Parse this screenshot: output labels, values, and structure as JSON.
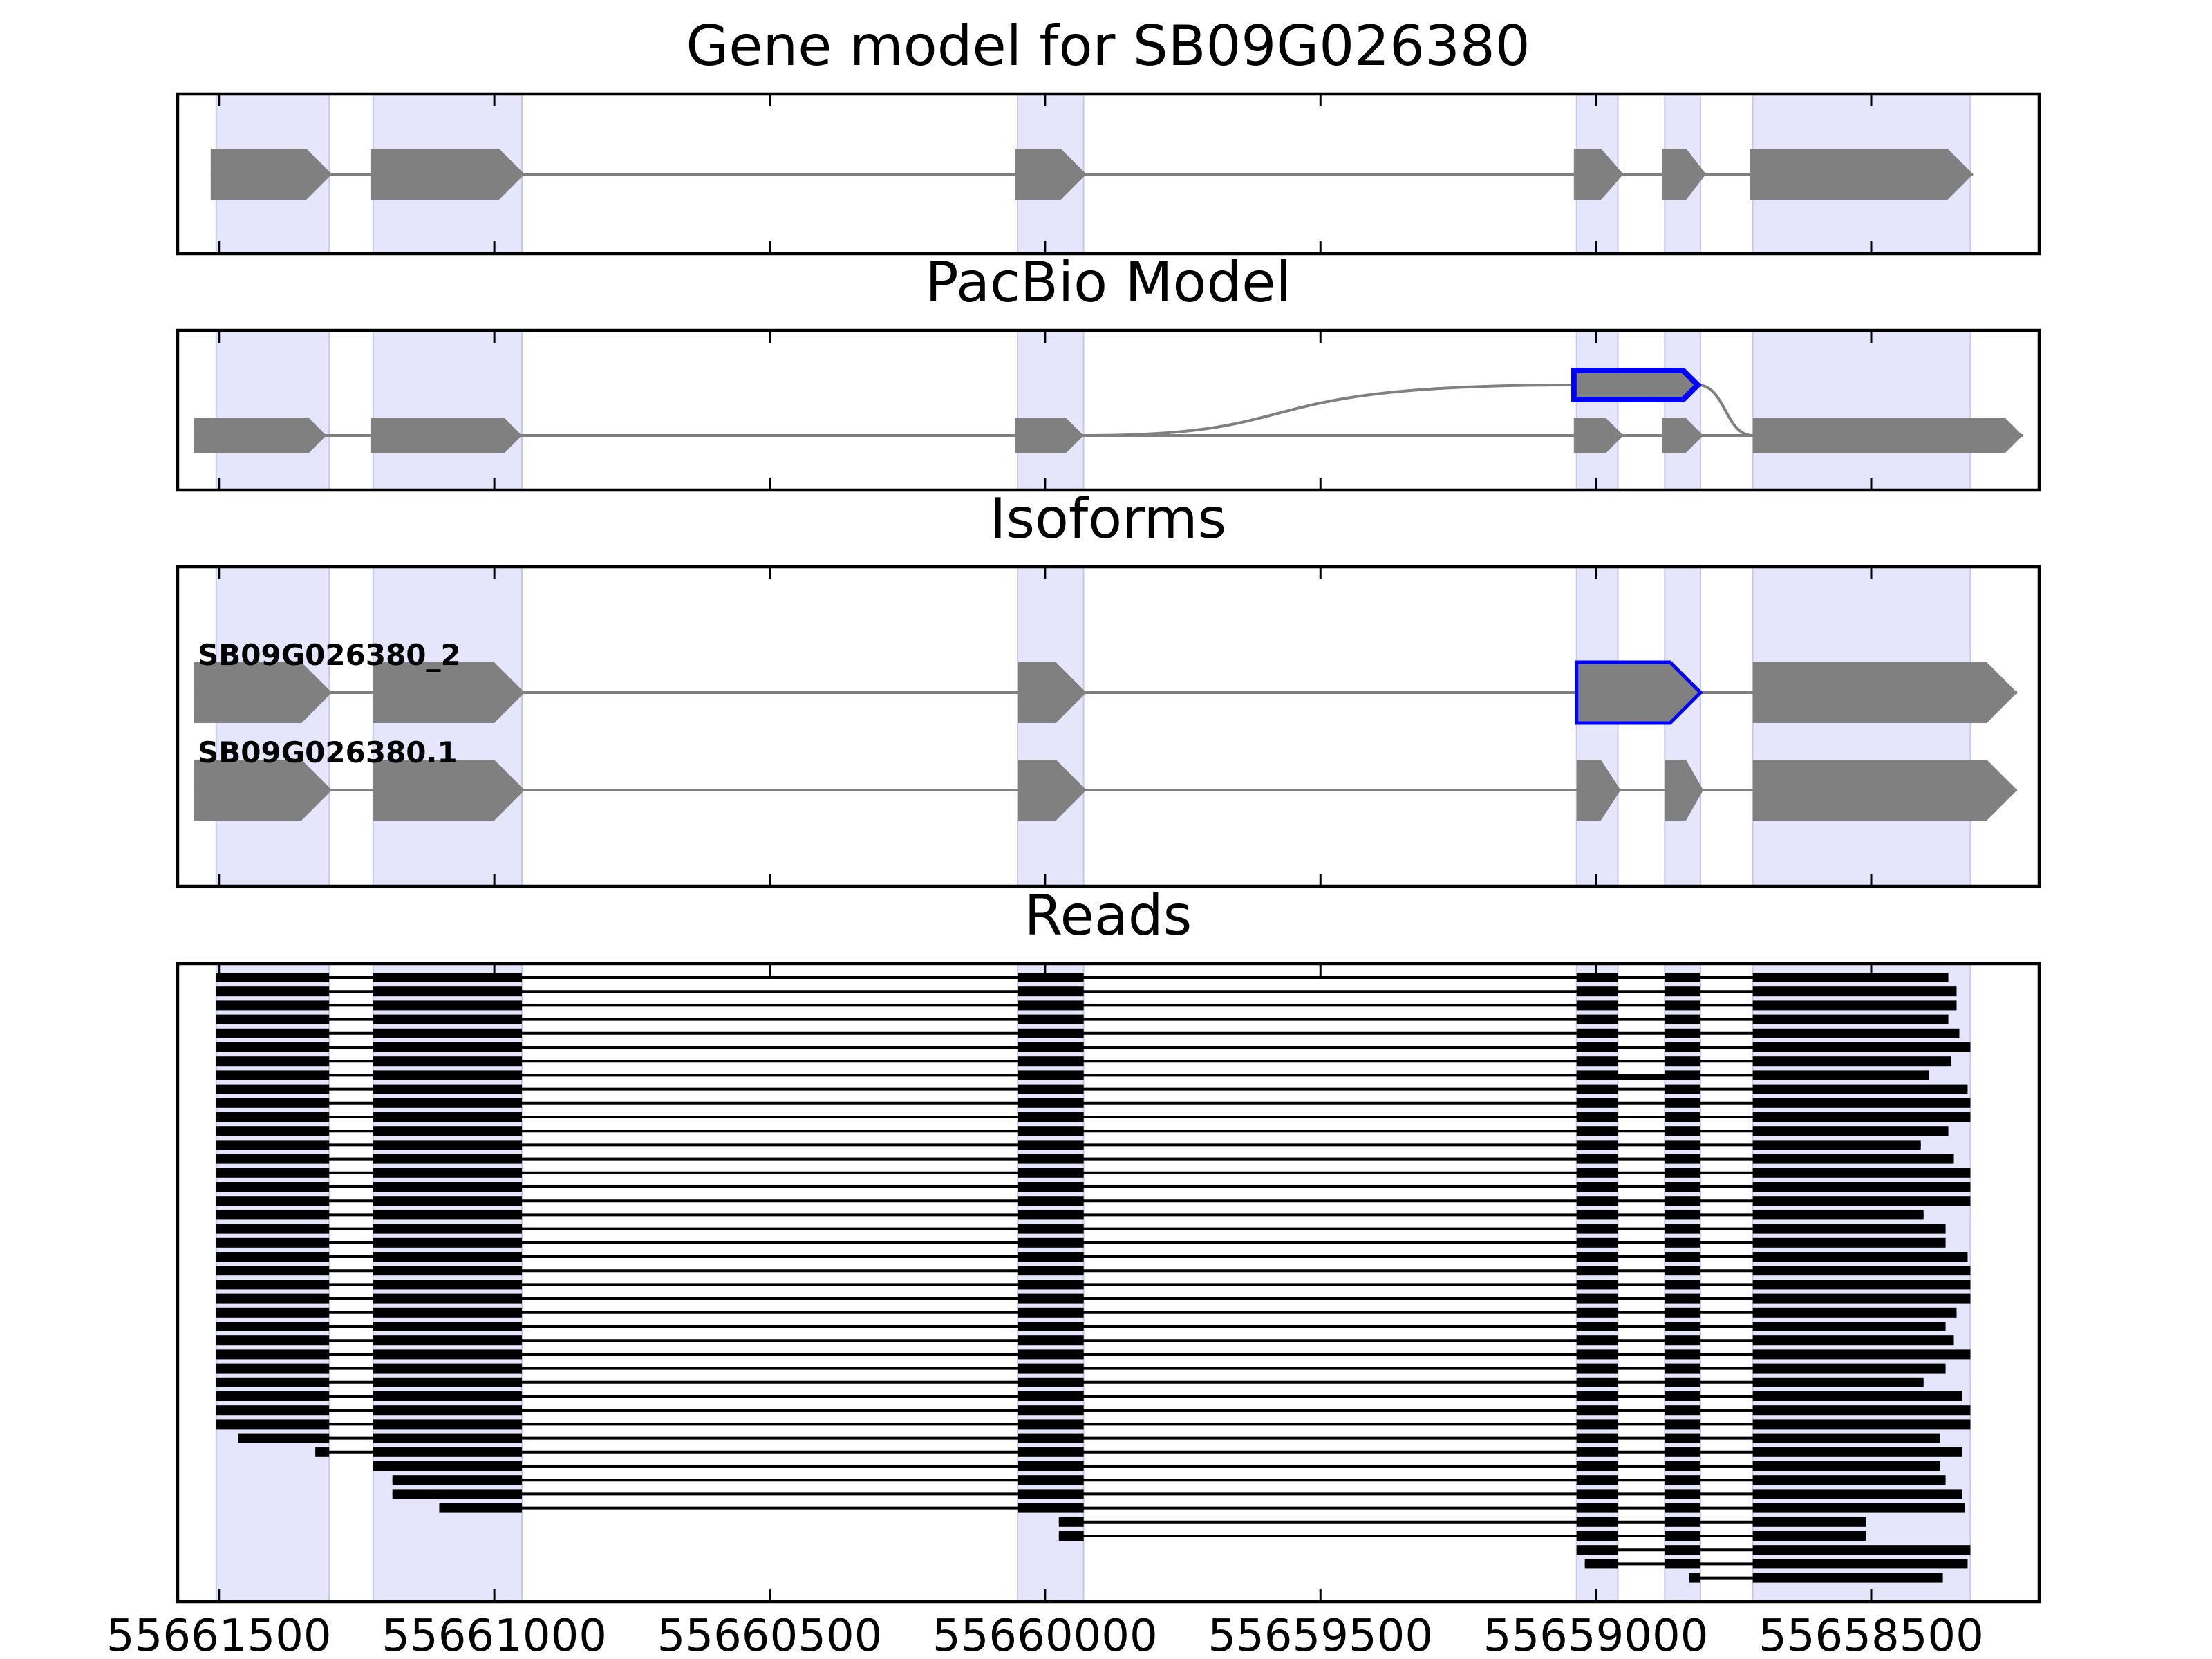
{
  "figure": {
    "panels": [
      {
        "id": "gene-model",
        "title": "Gene model for SB09G026380"
      },
      {
        "id": "pacbio-model",
        "title": "PacBio Model"
      },
      {
        "id": "isoforms",
        "title": "Isoforms"
      },
      {
        "id": "reads",
        "title": "Reads"
      }
    ]
  },
  "colors": {
    "exon_fill": "#808080",
    "intron_line": "#808080",
    "highlight_band": "#e5e5fc",
    "novel_outline": "#0000ff",
    "read": "#000000",
    "frame": "#000000"
  },
  "chart_data": {
    "type": "gene-model-diagram",
    "axis": {
      "orientation": "reversed",
      "ticks": [
        55661500,
        55661000,
        55660500,
        55660000,
        55659500,
        55659000,
        55658500
      ],
      "tick_labels": [
        "55661500",
        "55661000",
        "55660500",
        "55660000",
        "55659500",
        "55659000",
        "55658500"
      ],
      "xlim": [
        55661575,
        55658195
      ]
    },
    "highlighted_exon_regions": [
      [
        55661505,
        55661300
      ],
      [
        55661220,
        55660950
      ],
      [
        55660050,
        55659930
      ],
      [
        55659035,
        55658960
      ],
      [
        55658875,
        55658810
      ],
      [
        55658715,
        55658320
      ]
    ],
    "gene_model": {
      "exons": [
        [
          55661515,
          55661295
        ],
        [
          55661225,
          55660945
        ],
        [
          55660055,
          55659925
        ],
        [
          55659040,
          55658950
        ],
        [
          55658880,
          55658800
        ],
        [
          55658720,
          55658315
        ]
      ]
    },
    "pacbio_model": {
      "exons": [
        [
          55661545,
          55661305
        ],
        [
          55661225,
          55660950
        ],
        [
          55660055,
          55659930
        ],
        [
          55659040,
          55658950
        ],
        [
          55658880,
          55658805
        ],
        [
          55658715,
          55658225
        ]
      ],
      "novel_exon": [
        55659040,
        55658815
      ]
    },
    "isoforms": [
      {
        "name": "SB09G026380_2",
        "exons": [
          [
            55661545,
            55661295
          ],
          [
            55661220,
            55660945
          ],
          [
            55660050,
            55659925
          ],
          [
            55659035,
            55658810
          ],
          [
            55658715,
            55658235
          ]
        ],
        "novel_exon_index": 3
      },
      {
        "name": "SB09G026380.1",
        "exons": [
          [
            55661545,
            55661295
          ],
          [
            55661220,
            55660945
          ],
          [
            55660050,
            55659925
          ],
          [
            55659035,
            55658955
          ],
          [
            55658875,
            55658805
          ],
          [
            55658715,
            55658235
          ]
        ]
      }
    ],
    "reads": [
      {
        "start": 55661548,
        "end": 55658360
      },
      {
        "start": 55661545,
        "end": 55658345
      },
      {
        "start": 55661538,
        "end": 55658345
      },
      {
        "start": 55661535,
        "end": 55658360
      },
      {
        "start": 55661533,
        "end": 55658340
      },
      {
        "start": 55661533,
        "end": 55658265
      },
      {
        "start": 55661532,
        "end": 55658355
      },
      {
        "start": 55661532,
        "end": 55658395,
        "novel": true
      },
      {
        "start": 55661531,
        "end": 55658325
      },
      {
        "start": 55661530,
        "end": 55658320
      },
      {
        "start": 55661530,
        "end": 55658320
      },
      {
        "start": 55661529,
        "end": 55658360
      },
      {
        "start": 55661528,
        "end": 55658410
      },
      {
        "start": 55661527,
        "end": 55658350
      },
      {
        "start": 55661526,
        "end": 55658305
      },
      {
        "start": 55661525,
        "end": 55658275
      },
      {
        "start": 55661524,
        "end": 55658240
      },
      {
        "start": 55661523,
        "end": 55658405
      },
      {
        "start": 55661522,
        "end": 55658365
      },
      {
        "start": 55661522,
        "end": 55658365
      },
      {
        "start": 55661521,
        "end": 55658325
      },
      {
        "start": 55661521,
        "end": 55658295
      },
      {
        "start": 55661520,
        "end": 55658295
      },
      {
        "start": 55661519,
        "end": 55658285
      },
      {
        "start": 55661518,
        "end": 55658345
      },
      {
        "start": 55661516,
        "end": 55658365
      },
      {
        "start": 55661515,
        "end": 55658350
      },
      {
        "start": 55661514,
        "end": 55658320
      },
      {
        "start": 55661513,
        "end": 55658365
      },
      {
        "start": 55661512,
        "end": 55658405
      },
      {
        "start": 55661511,
        "end": 55658335
      },
      {
        "start": 55661510,
        "end": 55658290
      },
      {
        "start": 55661505,
        "end": 55658295
      },
      {
        "start": 55661465,
        "end": 55658375
      },
      {
        "start": 55661305,
        "end": 55658335,
        "partial_first_exon": [
          55661325,
          55661305
        ]
      },
      {
        "start": 55661222,
        "end": 55658375
      },
      {
        "start": 55661185,
        "end": 55658365
      },
      {
        "start": 55661185,
        "end": 55658335
      },
      {
        "start": 55661100,
        "end": 55658330
      },
      {
        "start": 55659975,
        "end": 55658510
      },
      {
        "start": 55659975,
        "end": 55658510
      },
      {
        "start": 55659038,
        "end": 55658285
      },
      {
        "start": 55659020,
        "end": 55658325
      },
      {
        "start": 55658830,
        "end": 55658370
      }
    ]
  }
}
